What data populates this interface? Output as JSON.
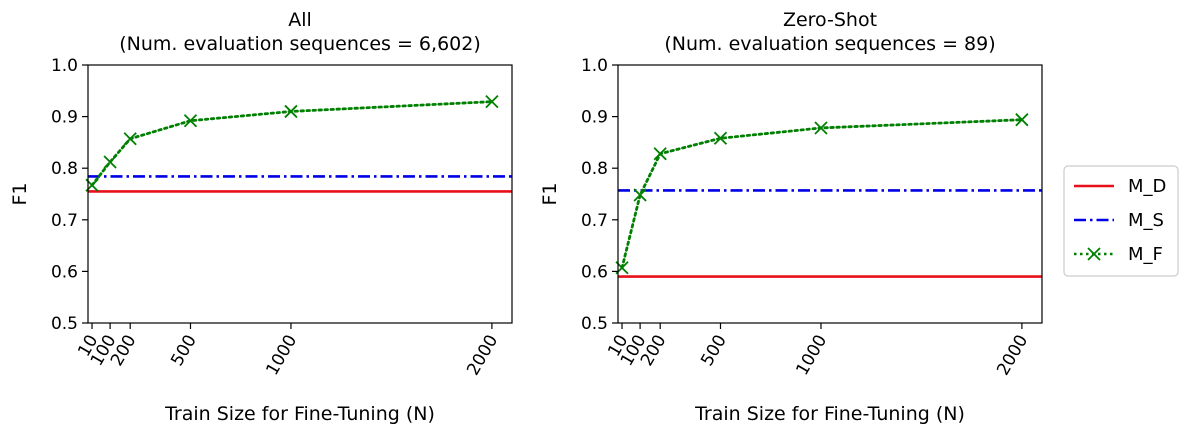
{
  "chart_data": [
    {
      "type": "line",
      "title": "All",
      "subtitle": "(Num. evaluation sequences = 6,602)",
      "xlabel": "Train Size for Fine-Tuning (N)",
      "ylabel": "F1",
      "xlim": [
        -10,
        2100
      ],
      "ylim": [
        0.5,
        1.0
      ],
      "xticks": [
        10,
        100,
        200,
        500,
        1000,
        2000
      ],
      "yticks": [
        0.5,
        0.6,
        0.7,
        0.8,
        0.9,
        1.0
      ],
      "ytick_labels": [
        "0.5",
        "0.6",
        "0.7",
        "0.8",
        "0.9",
        "1.0"
      ],
      "grid": false,
      "series": [
        {
          "name": "M_D",
          "style": "solid",
          "color": "#e8101a",
          "y_const": 0.755
        },
        {
          "name": "M_S",
          "style": "dashdot",
          "color": "#0000e6",
          "y_const": 0.784
        },
        {
          "name": "M_F",
          "style": "dotted",
          "marker": "x",
          "color": "#008000",
          "x": [
            10,
            100,
            200,
            500,
            1000,
            2000
          ],
          "y": [
            0.767,
            0.812,
            0.857,
            0.892,
            0.91,
            0.929
          ]
        }
      ]
    },
    {
      "type": "line",
      "title": "Zero-Shot",
      "subtitle": "(Num. evaluation sequences = 89)",
      "xlabel": "Train Size for Fine-Tuning (N)",
      "ylabel": "F1",
      "xlim": [
        -10,
        2100
      ],
      "ylim": [
        0.5,
        1.0
      ],
      "xticks": [
        10,
        100,
        200,
        500,
        1000,
        2000
      ],
      "yticks": [
        0.5,
        0.6,
        0.7,
        0.8,
        0.9,
        1.0
      ],
      "ytick_labels": [
        "0.5",
        "0.6",
        "0.7",
        "0.8",
        "0.9",
        "1.0"
      ],
      "grid": false,
      "series": [
        {
          "name": "M_D",
          "style": "solid",
          "color": "#e8101a",
          "y_const": 0.59
        },
        {
          "name": "M_S",
          "style": "dashdot",
          "color": "#0000e6",
          "y_const": 0.757
        },
        {
          "name": "M_F",
          "style": "dotted",
          "marker": "x",
          "color": "#008000",
          "x": [
            10,
            100,
            200,
            500,
            1000,
            2000
          ],
          "y": [
            0.607,
            0.748,
            0.828,
            0.858,
            0.878,
            0.894
          ]
        }
      ]
    }
  ],
  "legend": {
    "placement": "right",
    "items": [
      {
        "label": "M_D",
        "color": "#e8101a",
        "style": "solid"
      },
      {
        "label": "M_S",
        "color": "#0000e6",
        "style": "dashdot"
      },
      {
        "label": "M_F",
        "color": "#008000",
        "style": "dotted-x"
      }
    ]
  }
}
